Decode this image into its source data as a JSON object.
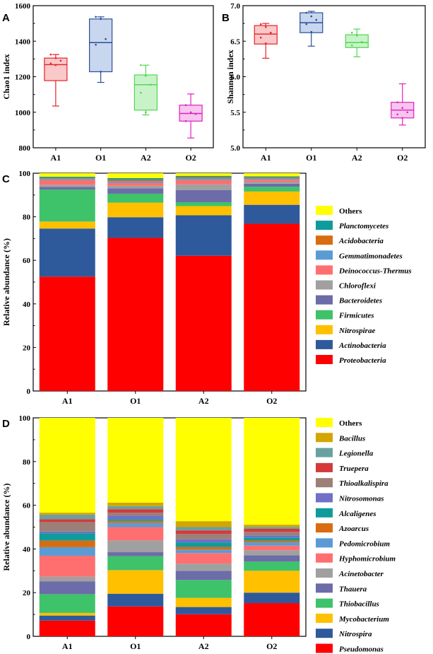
{
  "chart_data": [
    {
      "panel": "A",
      "type": "box",
      "ylabel": "Chao1 index",
      "ylim": [
        800,
        1600
      ],
      "yticks": [
        800,
        1000,
        1200,
        1400,
        1600
      ],
      "categories": [
        "A1",
        "O1",
        "A2",
        "O2"
      ],
      "colors": [
        "#e8202a",
        "#2a4e9a",
        "#4fd64f",
        "#e020c0"
      ],
      "fills": [
        "#f9c8c8",
        "#c8d6ee",
        "#c8f3c8",
        "#f7c6ee"
      ],
      "boxes": [
        {
          "min": 1035,
          "q1": 1178,
          "median": 1268,
          "q3": 1305,
          "max": 1325,
          "points": [
            1325,
            1305,
            1290,
            1275,
            1265
          ]
        },
        {
          "min": 1168,
          "q1": 1228,
          "median": 1392,
          "q3": 1525,
          "max": 1537,
          "points": [
            1537,
            1525,
            1412,
            1380,
            1228
          ]
        },
        {
          "min": 985,
          "q1": 1012,
          "median": 1155,
          "q3": 1210,
          "max": 1265,
          "points": [
            1265,
            1205,
            1155,
            1110,
            1000
          ]
        },
        {
          "min": 855,
          "q1": 950,
          "median": 993,
          "q3": 1040,
          "max": 1103,
          "points": [
            1040,
            1000,
            990,
            950
          ]
        }
      ]
    },
    {
      "panel": "B",
      "type": "box",
      "ylabel": "Shannon index",
      "ylim": [
        5.0,
        7.0
      ],
      "yticks": [
        "5.0",
        "5.5",
        "6.0",
        "6.5",
        "7.0"
      ],
      "categories": [
        "A1",
        "O1",
        "A2",
        "O2"
      ],
      "colors": [
        "#e8202a",
        "#2a4e9a",
        "#4fd64f",
        "#e020c0"
      ],
      "fills": [
        "#f9c8c8",
        "#c8d6ee",
        "#c8f3c8",
        "#f7c6ee"
      ],
      "boxes": [
        {
          "min": 6.26,
          "q1": 6.46,
          "median": 6.6,
          "q3": 6.72,
          "max": 6.75,
          "points": [
            6.74,
            6.7,
            6.62,
            6.55,
            6.47
          ]
        },
        {
          "min": 6.43,
          "q1": 6.62,
          "median": 6.76,
          "q3": 6.9,
          "max": 6.92,
          "points": [
            6.9,
            6.85,
            6.8,
            6.74,
            6.63
          ]
        },
        {
          "min": 6.28,
          "q1": 6.41,
          "median": 6.48,
          "q3": 6.59,
          "max": 6.67,
          "points": [
            6.62,
            6.58,
            6.49,
            6.44
          ]
        },
        {
          "min": 5.32,
          "q1": 5.42,
          "median": 5.53,
          "q3": 5.64,
          "max": 5.9,
          "points": [
            5.64,
            5.56,
            5.5,
            5.47,
            5.42
          ]
        }
      ]
    },
    {
      "panel": "C",
      "type": "stacked_bar",
      "ylabel": "Relative abundance (%)",
      "ylim": [
        0,
        100
      ],
      "yticks": [
        0,
        20,
        40,
        60,
        80,
        100
      ],
      "categories": [
        "A1",
        "O1",
        "A2",
        "O2"
      ],
      "series": [
        {
          "name": "Proteobacteria",
          "color": "#ff0000",
          "values": [
            52.5,
            70.3,
            62.1,
            76.8
          ]
        },
        {
          "name": "Actinobacteria",
          "color": "#2e5a9c",
          "values": [
            22.1,
            9.5,
            18.6,
            8.7
          ]
        },
        {
          "name": "Nitrospirae",
          "color": "#ffc000",
          "values": [
            3.2,
            6.7,
            4.2,
            6.1
          ]
        },
        {
          "name": "Firmicutes",
          "color": "#3ec26a",
          "values": [
            14.7,
            4.1,
            1.8,
            2.2
          ]
        },
        {
          "name": "Bacteroidetes",
          "color": "#6c6ca8",
          "values": [
            1.2,
            2.5,
            5.6,
            1.4
          ]
        },
        {
          "name": "Chloroflexi",
          "color": "#a0a0a0",
          "values": [
            1.0,
            1.1,
            2.6,
            0.9
          ]
        },
        {
          "name": "Deinococcus-Thermus",
          "color": "#ff6f6f",
          "values": [
            2.1,
            1.4,
            1.9,
            0.9
          ]
        },
        {
          "name": "Gemmatimonadetes",
          "color": "#5b9bd5",
          "values": [
            0.7,
            0.8,
            0.8,
            0.6
          ]
        },
        {
          "name": "Acidobacteria",
          "color": "#d96c10",
          "values": [
            0.4,
            0.7,
            0.6,
            0.5
          ]
        },
        {
          "name": "Planctomycetes",
          "color": "#0f9b9b",
          "values": [
            0.5,
            0.7,
            0.6,
            0.5
          ]
        },
        {
          "name": "Others",
          "color": "#ffff00",
          "values": [
            1.6,
            2.2,
            1.2,
            1.4
          ]
        }
      ]
    },
    {
      "panel": "D",
      "type": "stacked_bar",
      "ylabel": "Relative abundance (%)",
      "ylim": [
        0,
        100
      ],
      "yticks": [
        0,
        20,
        40,
        60,
        80,
        100
      ],
      "categories": [
        "A1",
        "O1",
        "A2",
        "O2"
      ],
      "series": [
        {
          "name": "Pseudomonas",
          "color": "#ff0000",
          "values": [
            7.2,
            13.7,
            10.1,
            15.2
          ]
        },
        {
          "name": "Nitrospira",
          "color": "#2e5a9c",
          "values": [
            2.3,
            5.8,
            3.3,
            4.8
          ]
        },
        {
          "name": "Mycobacterium",
          "color": "#ffc000",
          "values": [
            1.2,
            10.8,
            4.2,
            10.0
          ]
        },
        {
          "name": "Thiobacillus",
          "color": "#3ec26a",
          "values": [
            8.6,
            6.4,
            8.2,
            4.2
          ]
        },
        {
          "name": "Thauera",
          "color": "#6c6ca8",
          "values": [
            5.9,
            1.8,
            4.2,
            2.9
          ]
        },
        {
          "name": "Acinetobacter",
          "color": "#a0a0a0",
          "values": [
            2.1,
            5.4,
            3.3,
            2.3
          ]
        },
        {
          "name": "Hyphomicrobium",
          "color": "#ff6f6f",
          "values": [
            9.6,
            6.1,
            4.8,
            2.1
          ]
        },
        {
          "name": "Pedomicrobium",
          "color": "#5b9bd5",
          "values": [
            3.9,
            1.9,
            1.6,
            1.5
          ]
        },
        {
          "name": "Azoarcus",
          "color": "#d96c10",
          "values": [
            3.0,
            0.9,
            1.2,
            0.8
          ]
        },
        {
          "name": "Alcaligenes",
          "color": "#0f9b9b",
          "values": [
            3.4,
            0.8,
            2.1,
            1.4
          ]
        },
        {
          "name": "Nitrosomonas",
          "color": "#7070c8",
          "values": [
            0.8,
            1.6,
            1.4,
            1.0
          ]
        },
        {
          "name": "Thioalkalispira",
          "color": "#9c7f77",
          "values": [
            4.3,
            1.4,
            2.5,
            1.6
          ]
        },
        {
          "name": "Truepera",
          "color": "#d43a3a",
          "values": [
            1.3,
            1.6,
            1.6,
            1.4
          ]
        },
        {
          "name": "Legionella",
          "color": "#6aa0a0",
          "values": [
            2.1,
            1.4,
            1.5,
            0.9
          ]
        },
        {
          "name": "Bacillus",
          "color": "#d4a500",
          "values": [
            0.9,
            1.6,
            2.7,
            1.0
          ]
        },
        {
          "name": "Others",
          "color": "#ffff00",
          "values": [
            44.1,
            40.6,
            47.4,
            49.5
          ]
        }
      ]
    }
  ]
}
